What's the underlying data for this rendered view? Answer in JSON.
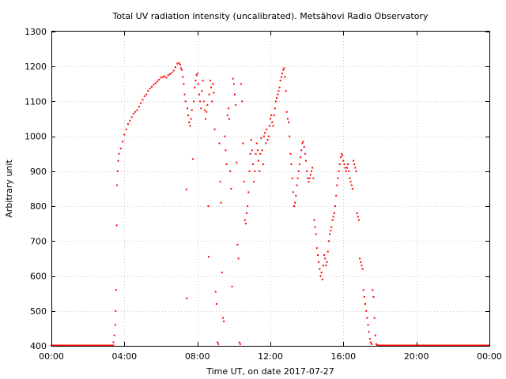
{
  "chart_data": {
    "type": "scatter",
    "title": "Total UV radiation intensity (uncalibrated). Metsähovi Radio Observatory",
    "xlabel": "Time UT, on date 2017-07-27",
    "ylabel": "Arbitrary unit",
    "xlim": [
      0,
      24
    ],
    "ylim": [
      400,
      1300
    ],
    "x_ticks": [
      0,
      4,
      8,
      12,
      16,
      20,
      24
    ],
    "x_tick_labels": [
      "00:00",
      "04:00",
      "08:00",
      "12:00",
      "16:00",
      "20:00",
      "00:00"
    ],
    "y_ticks": [
      400,
      500,
      600,
      700,
      800,
      900,
      1000,
      1100,
      1200,
      1300
    ],
    "y_tick_labels": [
      "400",
      "500",
      "600",
      "700",
      "800",
      "900",
      "1000",
      "1100",
      "1200",
      "1300"
    ],
    "grid": true,
    "marker_color": "#ff0000",
    "series": [
      {
        "points": [
          [
            3.4,
            410
          ],
          [
            3.45,
            430
          ],
          [
            3.5,
            460
          ],
          [
            3.52,
            500
          ],
          [
            3.55,
            560
          ],
          [
            3.58,
            745
          ],
          [
            3.6,
            860
          ],
          [
            3.63,
            900
          ],
          [
            3.66,
            930
          ],
          [
            3.7,
            950
          ],
          [
            3.8,
            965
          ],
          [
            3.9,
            985
          ],
          [
            4.0,
            1005
          ],
          [
            4.1,
            1020
          ],
          [
            4.2,
            1035
          ],
          [
            4.3,
            1045
          ],
          [
            4.4,
            1055
          ],
          [
            4.5,
            1065
          ],
          [
            4.6,
            1070
          ],
          [
            4.7,
            1075
          ],
          [
            4.8,
            1085
          ],
          [
            4.9,
            1095
          ],
          [
            5.0,
            1105
          ],
          [
            5.1,
            1115
          ],
          [
            5.2,
            1120
          ],
          [
            5.3,
            1130
          ],
          [
            5.4,
            1137
          ],
          [
            5.5,
            1142
          ],
          [
            5.6,
            1148
          ],
          [
            5.7,
            1152
          ],
          [
            5.8,
            1157
          ],
          [
            5.9,
            1162
          ],
          [
            6.0,
            1168
          ],
          [
            6.1,
            1170
          ],
          [
            6.2,
            1172
          ],
          [
            6.3,
            1168
          ],
          [
            6.4,
            1175
          ],
          [
            6.5,
            1178
          ],
          [
            6.6,
            1182
          ],
          [
            6.7,
            1188
          ],
          [
            6.8,
            1198
          ],
          [
            6.9,
            1208
          ],
          [
            7.0,
            1210
          ],
          [
            7.05,
            1205
          ],
          [
            7.1,
            1195
          ],
          [
            7.15,
            1190
          ],
          [
            7.2,
            1170
          ],
          [
            7.25,
            1150
          ],
          [
            7.3,
            1120
          ],
          [
            7.35,
            1100
          ],
          [
            7.4,
            848
          ],
          [
            7.42,
            536
          ],
          [
            7.45,
            1080
          ],
          [
            7.5,
            1060
          ],
          [
            7.55,
            1040
          ],
          [
            7.6,
            1030
          ],
          [
            7.65,
            1050
          ],
          [
            7.7,
            1075
          ],
          [
            7.75,
            935
          ],
          [
            7.8,
            1100
          ],
          [
            7.85,
            1140
          ],
          [
            7.9,
            1160
          ],
          [
            7.95,
            1175
          ],
          [
            8.0,
            1180
          ],
          [
            8.05,
            1150
          ],
          [
            8.1,
            1120
          ],
          [
            8.15,
            1100
          ],
          [
            8.2,
            1080
          ],
          [
            8.25,
            1130
          ],
          [
            8.3,
            1160
          ],
          [
            8.35,
            1100
          ],
          [
            8.4,
            1075
          ],
          [
            8.45,
            1050
          ],
          [
            8.5,
            1070
          ],
          [
            8.55,
            1090
          ],
          [
            8.6,
            800
          ],
          [
            8.62,
            655
          ],
          [
            8.65,
            1120
          ],
          [
            8.7,
            1160
          ],
          [
            8.75,
            1140
          ],
          [
            8.8,
            1100
          ],
          [
            8.85,
            1150
          ],
          [
            8.9,
            1125
          ],
          [
            8.95,
            1020
          ],
          [
            9.0,
            555
          ],
          [
            9.05,
            520
          ],
          [
            9.1,
            410
          ],
          [
            9.15,
            405
          ],
          [
            9.2,
            980
          ],
          [
            9.25,
            870
          ],
          [
            9.3,
            810
          ],
          [
            9.35,
            610
          ],
          [
            9.4,
            480
          ],
          [
            9.45,
            470
          ],
          [
            9.5,
            1000
          ],
          [
            9.55,
            960
          ],
          [
            9.6,
            920
          ],
          [
            9.65,
            1060
          ],
          [
            9.7,
            1080
          ],
          [
            9.75,
            1050
          ],
          [
            9.8,
            900
          ],
          [
            9.85,
            850
          ],
          [
            9.9,
            570
          ],
          [
            9.95,
            1165
          ],
          [
            10.0,
            1150
          ],
          [
            10.05,
            1120
          ],
          [
            10.1,
            1090
          ],
          [
            10.15,
            925
          ],
          [
            10.2,
            690
          ],
          [
            10.25,
            650
          ],
          [
            10.3,
            410
          ],
          [
            10.35,
            405
          ],
          [
            10.4,
            1150
          ],
          [
            10.45,
            1100
          ],
          [
            10.5,
            980
          ],
          [
            10.55,
            870
          ],
          [
            10.6,
            760
          ],
          [
            10.65,
            750
          ],
          [
            10.7,
            780
          ],
          [
            10.75,
            800
          ],
          [
            10.8,
            840
          ],
          [
            10.85,
            900
          ],
          [
            10.9,
            950
          ],
          [
            10.95,
            990
          ],
          [
            11.0,
            960
          ],
          [
            11.05,
            920
          ],
          [
            11.1,
            870
          ],
          [
            11.15,
            900
          ],
          [
            11.2,
            950
          ],
          [
            11.25,
            980
          ],
          [
            11.3,
            960
          ],
          [
            11.35,
            930
          ],
          [
            11.4,
            900
          ],
          [
            11.45,
            950
          ],
          [
            11.5,
            995
          ],
          [
            11.55,
            960
          ],
          [
            11.6,
            920
          ],
          [
            11.65,
            1000
          ],
          [
            11.7,
            1010
          ],
          [
            11.75,
            980
          ],
          [
            11.8,
            1020
          ],
          [
            11.85,
            990
          ],
          [
            11.9,
            1000
          ],
          [
            11.95,
            1030
          ],
          [
            12.0,
            1050
          ],
          [
            12.05,
            1060
          ],
          [
            12.1,
            1040
          ],
          [
            12.15,
            1030
          ],
          [
            12.2,
            1060
          ],
          [
            12.25,
            1080
          ],
          [
            12.3,
            1100
          ],
          [
            12.35,
            1110
          ],
          [
            12.4,
            1120
          ],
          [
            12.45,
            1130
          ],
          [
            12.5,
            1140
          ],
          [
            12.55,
            1160
          ],
          [
            12.6,
            1170
          ],
          [
            12.65,
            1180
          ],
          [
            12.7,
            1190
          ],
          [
            12.75,
            1195
          ],
          [
            12.8,
            1170
          ],
          [
            12.85,
            1130
          ],
          [
            12.9,
            1070
          ],
          [
            12.95,
            1050
          ],
          [
            13.0,
            1040
          ],
          [
            13.05,
            1000
          ],
          [
            13.1,
            950
          ],
          [
            13.15,
            920
          ],
          [
            13.2,
            880
          ],
          [
            13.25,
            840
          ],
          [
            13.3,
            800
          ],
          [
            13.35,
            810
          ],
          [
            13.4,
            830
          ],
          [
            13.45,
            860
          ],
          [
            13.5,
            880
          ],
          [
            13.55,
            900
          ],
          [
            13.6,
            920
          ],
          [
            13.65,
            940
          ],
          [
            13.7,
            960
          ],
          [
            13.75,
            980
          ],
          [
            13.8,
            985
          ],
          [
            13.85,
            970
          ],
          [
            13.9,
            950
          ],
          [
            13.95,
            930
          ],
          [
            14.0,
            900
          ],
          [
            14.05,
            880
          ],
          [
            14.1,
            870
          ],
          [
            14.15,
            880
          ],
          [
            14.2,
            890
          ],
          [
            14.25,
            900
          ],
          [
            14.3,
            910
          ],
          [
            14.35,
            880
          ],
          [
            14.4,
            760
          ],
          [
            14.45,
            740
          ],
          [
            14.5,
            720
          ],
          [
            14.55,
            680
          ],
          [
            14.6,
            660
          ],
          [
            14.65,
            640
          ],
          [
            14.7,
            620
          ],
          [
            14.75,
            600
          ],
          [
            14.8,
            610
          ],
          [
            14.85,
            590
          ],
          [
            14.9,
            630
          ],
          [
            14.95,
            660
          ],
          [
            15.0,
            650
          ],
          [
            15.05,
            630
          ],
          [
            15.1,
            640
          ],
          [
            15.15,
            670
          ],
          [
            15.2,
            700
          ],
          [
            15.25,
            720
          ],
          [
            15.3,
            730
          ],
          [
            15.35,
            740
          ],
          [
            15.4,
            760
          ],
          [
            15.45,
            770
          ],
          [
            15.5,
            780
          ],
          [
            15.55,
            800
          ],
          [
            15.6,
            830
          ],
          [
            15.65,
            860
          ],
          [
            15.7,
            880
          ],
          [
            15.75,
            900
          ],
          [
            15.8,
            920
          ],
          [
            15.85,
            940
          ],
          [
            15.9,
            950
          ],
          [
            15.95,
            945
          ],
          [
            16.0,
            930
          ],
          [
            16.05,
            920
          ],
          [
            16.1,
            910
          ],
          [
            16.15,
            900
          ],
          [
            16.2,
            910
          ],
          [
            16.25,
            920
          ],
          [
            16.3,
            900
          ],
          [
            16.35,
            880
          ],
          [
            16.4,
            870
          ],
          [
            16.45,
            860
          ],
          [
            16.5,
            850
          ],
          [
            16.55,
            930
          ],
          [
            16.6,
            920
          ],
          [
            16.65,
            910
          ],
          [
            16.7,
            900
          ],
          [
            16.75,
            780
          ],
          [
            16.8,
            770
          ],
          [
            16.85,
            760
          ],
          [
            16.9,
            650
          ],
          [
            16.95,
            640
          ],
          [
            17.0,
            630
          ],
          [
            17.05,
            620
          ],
          [
            17.1,
            560
          ],
          [
            17.15,
            540
          ],
          [
            17.2,
            520
          ],
          [
            17.25,
            500
          ],
          [
            17.3,
            480
          ],
          [
            17.35,
            460
          ],
          [
            17.4,
            440
          ],
          [
            17.45,
            420
          ],
          [
            17.5,
            410
          ],
          [
            17.55,
            405
          ],
          [
            17.6,
            560
          ],
          [
            17.65,
            540
          ],
          [
            17.7,
            480
          ],
          [
            17.75,
            430
          ],
          [
            17.8,
            405
          ],
          [
            17.85,
            402
          ]
        ]
      }
    ],
    "baseline": {
      "y": 400,
      "ranges": [
        [
          0,
          3.4
        ],
        [
          17.9,
          24
        ]
      ]
    }
  }
}
